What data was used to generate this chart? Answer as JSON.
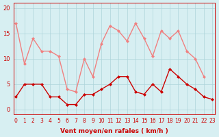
{
  "x": [
    0,
    1,
    2,
    3,
    4,
    5,
    6,
    7,
    8,
    9,
    10,
    11,
    12,
    13,
    14,
    15,
    16,
    17,
    18,
    19,
    20,
    21,
    22,
    23
  ],
  "rafales": [
    17,
    9,
    14,
    11.5,
    11.5,
    10.5,
    4,
    3.5,
    10,
    6.5,
    13,
    16.5,
    15.5,
    13.5,
    17,
    14,
    10.5,
    15.5,
    14,
    15.5,
    11.5,
    10,
    6.5,
    null
  ],
  "moy": [
    2.5,
    5,
    5,
    5,
    2.5,
    2.5,
    1,
    1,
    3,
    3,
    4,
    5,
    6.5,
    6.5,
    3.5,
    3,
    5,
    3.5,
    8,
    6.5,
    5,
    4,
    2.5,
    2
  ],
  "bg_color": "#d7eff2",
  "grid_color": "#aed4da",
  "line_moy_color": "#cc0000",
  "line_raf_color": "#f08080",
  "xlabel": "Vent moyen/en rafales ( km/h )",
  "ylabel_ticks": [
    0,
    5,
    10,
    15,
    20
  ],
  "xlim": [
    -0.3,
    23.3
  ],
  "ylim": [
    -1,
    21
  ]
}
